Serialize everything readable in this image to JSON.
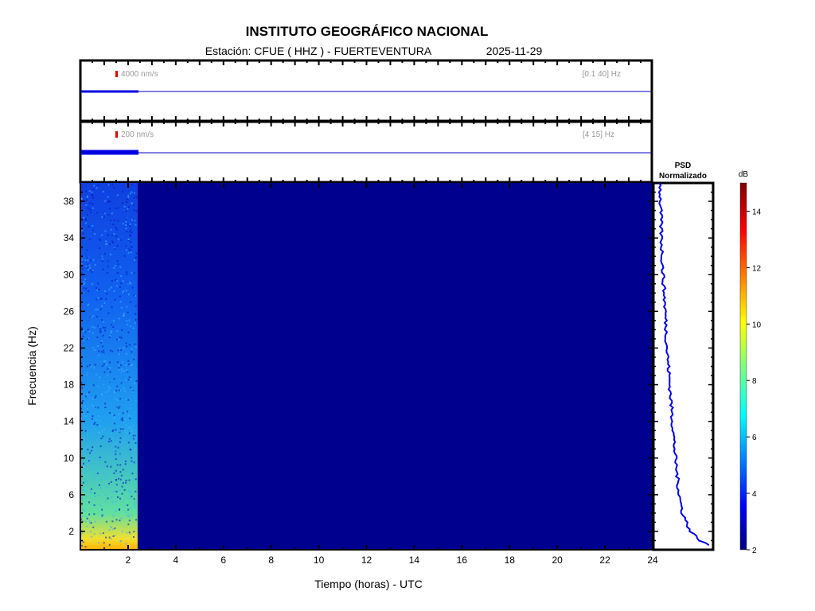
{
  "title": "INSTITUTO GEOGRÁFICO NACIONAL",
  "subtitle": {
    "station": "Estación:  CFUE ( HHZ ) - FUERTEVENTURA",
    "date": "2025-11-29"
  },
  "traces": [
    {
      "scale_label": "4000 nm/s",
      "band_label": "[0.1 40] Hz",
      "color": "#0000e0"
    },
    {
      "scale_label": "200 nm/s",
      "band_label": "[4 15] Hz",
      "color": "#0000e0"
    }
  ],
  "psd": {
    "title_line1": "PSD",
    "title_line2": "Normalizado"
  },
  "chart_data": {
    "type": "heatmap",
    "title": "INSTITUTO GEOGRÁFICO NACIONAL",
    "xlabel": "Tiempo (horas) - UTC",
    "ylabel": "Frecuencia  (Hz)",
    "xlim": [
      0,
      24
    ],
    "ylim": [
      0,
      40
    ],
    "xticks": [
      2,
      4,
      6,
      8,
      10,
      12,
      14,
      16,
      18,
      20,
      22,
      24
    ],
    "yticks": [
      2,
      6,
      10,
      14,
      18,
      22,
      26,
      30,
      34,
      38
    ],
    "data_end_hour": 2.4,
    "background_db": 2,
    "colorbar": {
      "label": "dB",
      "range": [
        2,
        15
      ],
      "ticks": [
        2,
        4,
        6,
        8,
        10,
        12,
        14
      ]
    },
    "psd_curve": {
      "freq_hz": [
        0.3,
        1,
        2,
        4,
        6,
        10,
        14,
        18,
        22,
        26,
        30,
        34,
        38,
        40
      ],
      "normalized": [
        1.0,
        0.8,
        0.62,
        0.48,
        0.42,
        0.35,
        0.3,
        0.25,
        0.2,
        0.17,
        0.13,
        0.1,
        0.08,
        0.08
      ]
    }
  }
}
